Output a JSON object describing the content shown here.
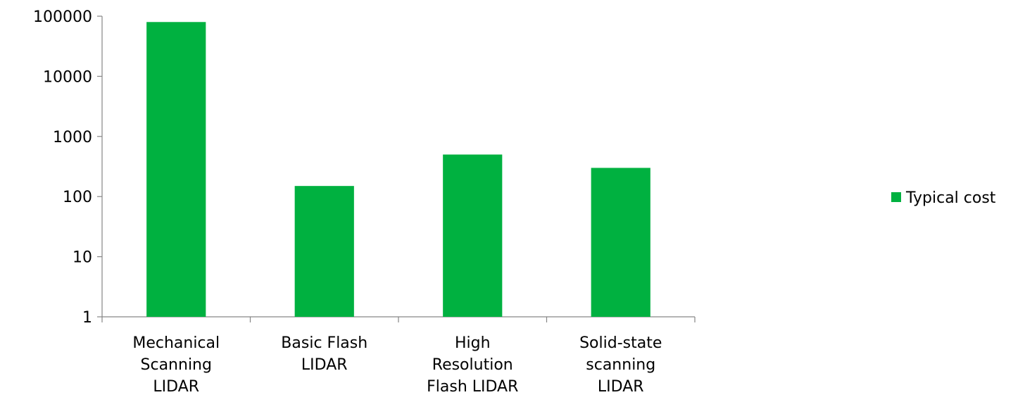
{
  "chart_data": {
    "type": "bar",
    "yscale": "log",
    "ylim": [
      1,
      100000
    ],
    "yticks": [
      "1",
      "10",
      "100",
      "1000",
      "10000",
      "100000"
    ],
    "categories": [
      [
        "Mechanical",
        "Scanning",
        "LIDAR"
      ],
      [
        "Basic Flash",
        "LIDAR"
      ],
      [
        "High",
        "Resolution",
        "Flash LIDAR"
      ],
      [
        "Solid-state",
        "scanning",
        "LIDAR"
      ]
    ],
    "series": [
      {
        "name": "Typical cost",
        "values": [
          80000,
          150,
          500,
          300
        ],
        "color": "#00b140"
      }
    ],
    "legend_position": "right",
    "grid": false
  }
}
